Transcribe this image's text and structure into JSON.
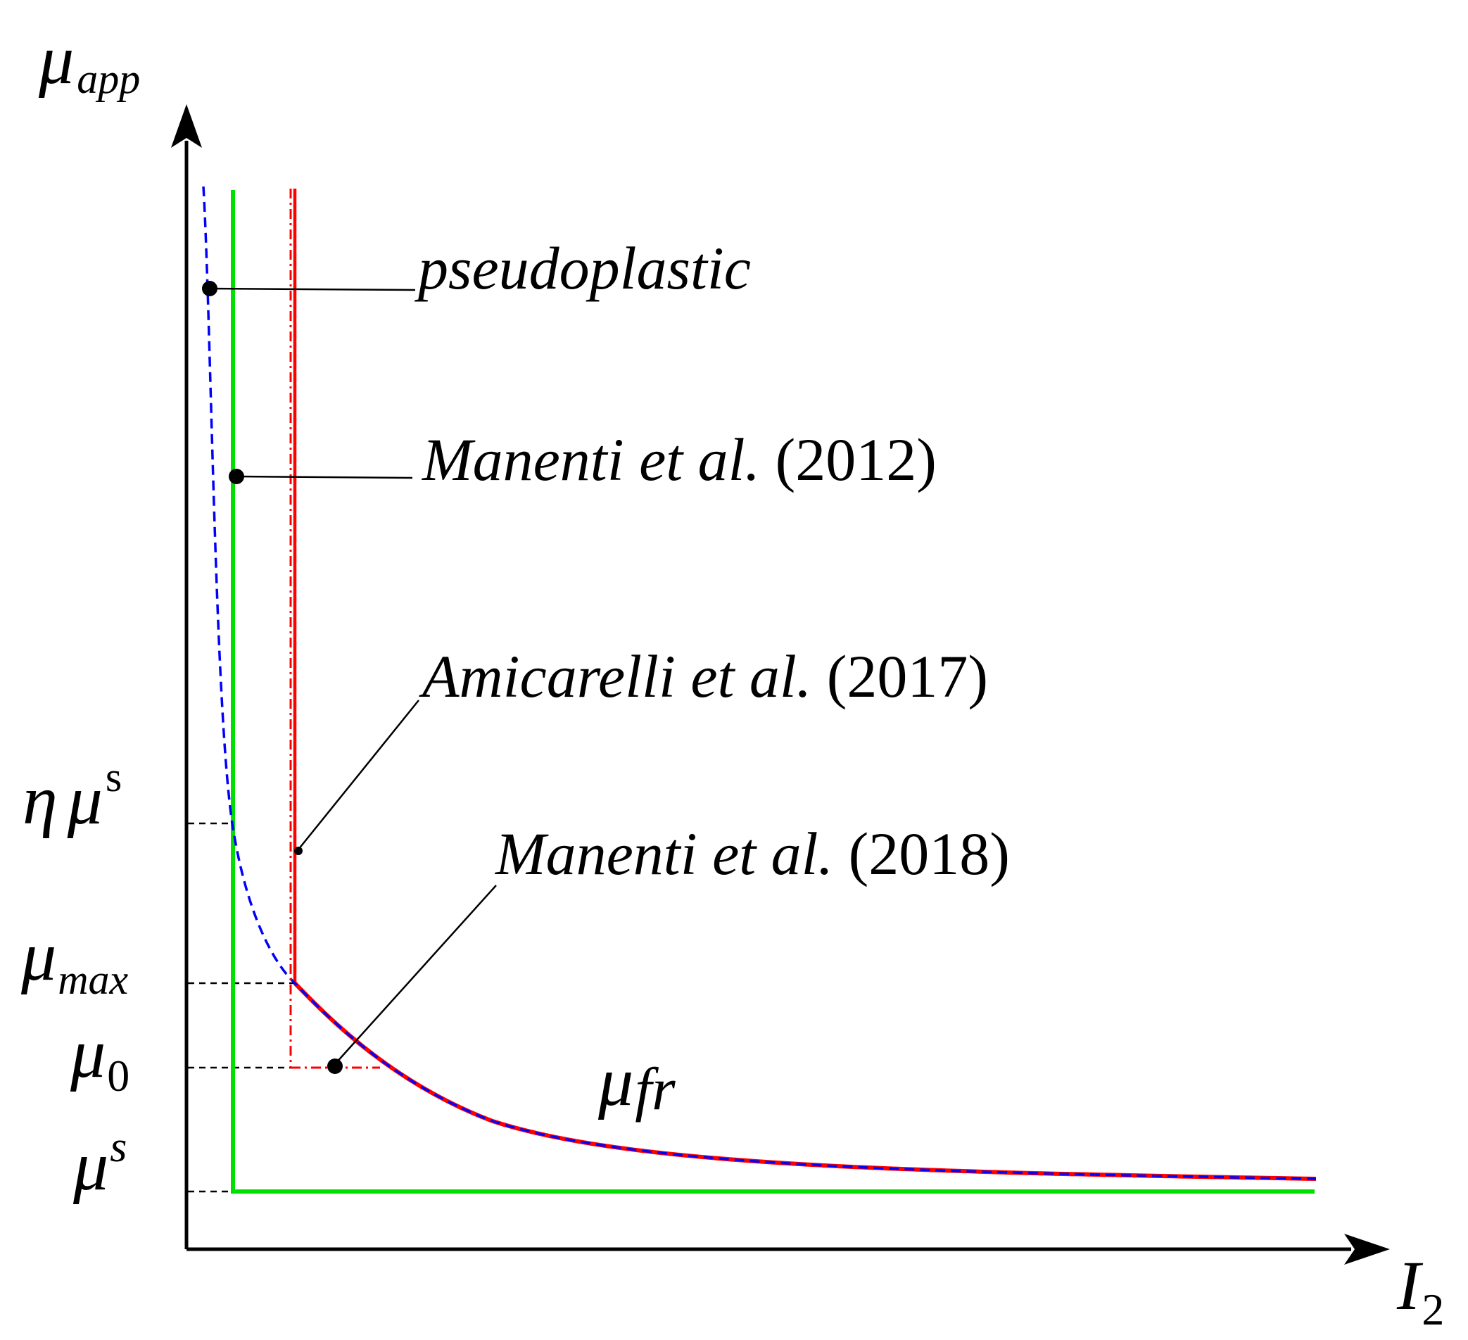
{
  "axes": {
    "y_label": {
      "main": "μ",
      "sub": "app"
    },
    "x_label": {
      "main": "I",
      "sub": "2"
    }
  },
  "y_ticks": [
    {
      "id": "eta-mu-s",
      "eta": "η",
      "mu": "μ",
      "sup": "s"
    },
    {
      "id": "mu-max",
      "mu": "μ",
      "sub": "max"
    },
    {
      "id": "mu-0",
      "mu": "μ",
      "sub": "0"
    },
    {
      "id": "mu-s",
      "mu": "μ",
      "sup": "s"
    }
  ],
  "curve_label": {
    "mu": "μ",
    "sub": "fr"
  },
  "legend_labels": [
    {
      "id": "pseudoplastic",
      "italic": "pseudoplastic",
      "year": ""
    },
    {
      "id": "manenti-2012",
      "italic": "Manenti et al.",
      "year": " (2012)"
    },
    {
      "id": "amicarelli-2017",
      "italic": "Amicarelli et al.",
      "year": " (2017)"
    },
    {
      "id": "manenti-2018",
      "italic": "Manenti et al.",
      "year": " (2018)"
    }
  ],
  "colors": {
    "axis": "#000000",
    "pseudoplastic": "#0000ff",
    "manenti_2012": "#00e000",
    "amicarelli_2017": "#ff0000",
    "manenti_2018": "#ff0000",
    "guide": "#000000"
  }
}
